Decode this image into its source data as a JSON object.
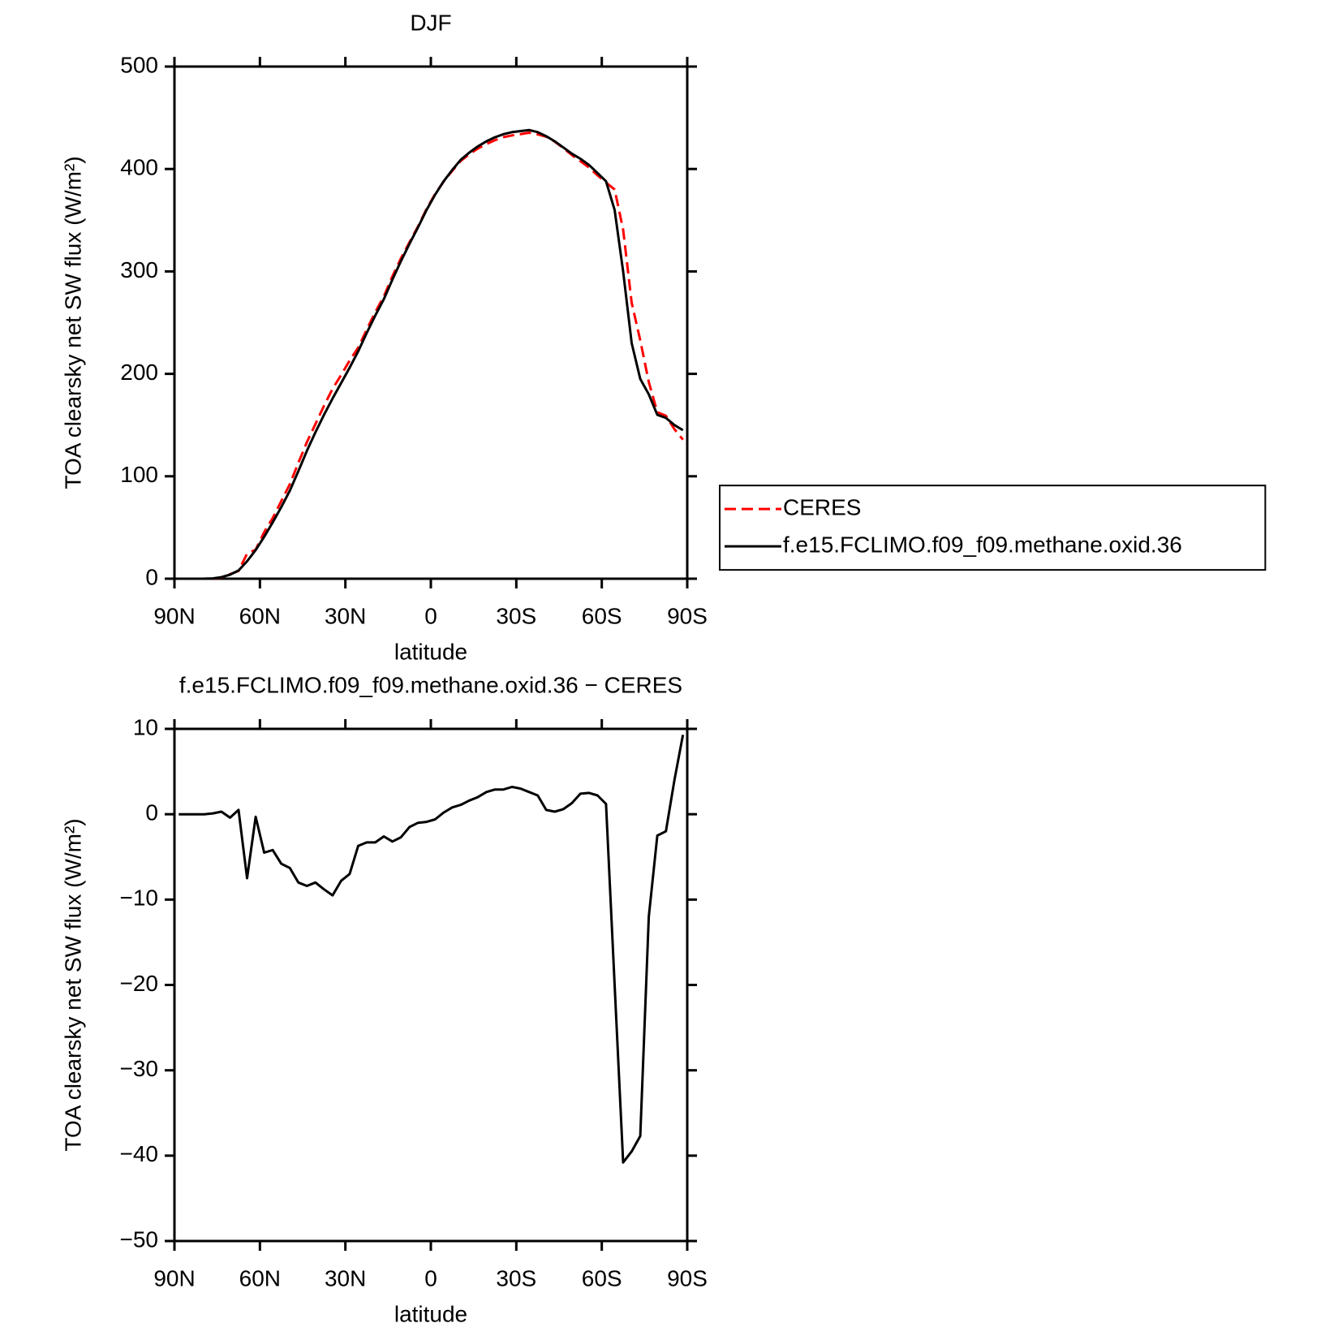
{
  "chart_data": [
    {
      "type": "line",
      "title": "DJF",
      "xlabel": "latitude",
      "ylabel": "TOA clearsky net SW flux (W/m²)",
      "x": [
        88.5,
        85.5,
        82.5,
        79.5,
        76.5,
        73.5,
        70.5,
        67.5,
        64.5,
        61.5,
        58.5,
        55.5,
        52.5,
        49.5,
        46.5,
        43.5,
        40.5,
        37.5,
        34.5,
        31.5,
        28.5,
        25.5,
        22.5,
        19.5,
        16.5,
        13.5,
        10.5,
        7.5,
        4.5,
        1.5,
        -1.5,
        -4.5,
        -7.5,
        -10.5,
        -13.5,
        -16.5,
        -19.5,
        -22.5,
        -25.5,
        -28.5,
        -31.5,
        -34.5,
        -37.5,
        -40.5,
        -43.5,
        -46.5,
        -49.5,
        -52.5,
        -55.5,
        -58.5,
        -61.5,
        -64.5,
        -67.5,
        -70.5,
        -73.5,
        -76.5,
        -79.5,
        -82.5,
        -85.5,
        -88.5
      ],
      "series": [
        {
          "name": "CERES",
          "color": "#ff0000",
          "dashed": true,
          "values": [
            0,
            0,
            0,
            0,
            0.2,
            1.2,
            4.4,
            7.5,
            24.5,
            28.3,
            45.5,
            59.2,
            75.8,
            92.3,
            113,
            133.4,
            151,
            168.8,
            185.5,
            198.8,
            213,
            225.7,
            243.3,
            260.3,
            275.6,
            295.2,
            312.7,
            328.5,
            344,
            360.9,
            375.6,
            387.8,
            398.2,
            407.9,
            414.4,
            420,
            424.4,
            428.1,
            431.1,
            432.8,
            434,
            435.4,
            433.8,
            431.5,
            426.7,
            420.4,
            413.7,
            407.6,
            401.5,
            393.8,
            386.8,
            380,
            340.8,
            269.5,
            232.7,
            192,
            162.5,
            159,
            146,
            135.7
          ]
        },
        {
          "name": "f.e15.FCLIMO.f09_f09.methane.oxid.36",
          "color": "#000000",
          "dashed": false,
          "values": [
            0,
            0,
            0,
            0,
            0.3,
            1.5,
            4,
            8,
            17,
            28,
            41,
            55,
            70,
            86,
            105,
            125,
            143,
            160,
            176,
            191,
            206,
            222,
            240,
            257,
            273,
            292,
            310,
            327,
            343,
            360,
            375,
            388,
            399,
            409,
            416,
            422,
            427,
            431,
            434,
            436,
            437,
            438,
            436,
            432,
            427,
            421,
            415,
            410,
            404,
            396,
            388,
            360,
            300,
            230,
            195,
            180,
            160,
            157,
            150,
            145
          ]
        }
      ],
      "xlim": [
        90,
        -90
      ],
      "xticks": [
        {
          "value": 90,
          "label": "90N"
        },
        {
          "value": 60,
          "label": "60N"
        },
        {
          "value": 30,
          "label": "30N"
        },
        0,
        {
          "value": -30,
          "label": "30S"
        },
        {
          "value": -60,
          "label": "60S"
        },
        {
          "value": -90,
          "label": "90S"
        }
      ],
      "ylim": [
        0,
        500
      ],
      "yticks": [
        0,
        100,
        200,
        300,
        400,
        500
      ],
      "legend": "right"
    },
    {
      "type": "line",
      "title": "f.e15.FCLIMO.f09_f09.methane.oxid.36 − CERES",
      "xlabel": "latitude",
      "ylabel": "TOA clearsky net SW flux (W/m²)",
      "x": [
        88.5,
        85.5,
        82.5,
        79.5,
        76.5,
        73.5,
        70.5,
        67.5,
        64.5,
        61.5,
        58.5,
        55.5,
        52.5,
        49.5,
        46.5,
        43.5,
        40.5,
        37.5,
        34.5,
        31.5,
        28.5,
        25.5,
        22.5,
        19.5,
        16.5,
        13.5,
        10.5,
        7.5,
        4.5,
        1.5,
        -1.5,
        -4.5,
        -7.5,
        -10.5,
        -13.5,
        -16.5,
        -19.5,
        -22.5,
        -25.5,
        -28.5,
        -31.5,
        -34.5,
        -37.5,
        -40.5,
        -43.5,
        -46.5,
        -49.5,
        -52.5,
        -55.5,
        -58.5,
        -61.5,
        -64.5,
        -67.5,
        -70.5,
        -73.5,
        -76.5,
        -79.5,
        -82.5,
        -85.5,
        -88.5
      ],
      "values": [
        0,
        0,
        0,
        0,
        0.1,
        0.3,
        -0.4,
        0.5,
        -7.5,
        -0.3,
        -4.5,
        -4.2,
        -5.8,
        -6.3,
        -8,
        -8.4,
        -8,
        -8.8,
        -9.5,
        -7.8,
        -7,
        -3.7,
        -3.3,
        -3.3,
        -2.6,
        -3.2,
        -2.7,
        -1.5,
        -1,
        -0.9,
        -0.6,
        0.2,
        0.8,
        1.1,
        1.6,
        2,
        2.6,
        2.9,
        2.9,
        3.2,
        3,
        2.6,
        2.2,
        0.5,
        0.3,
        0.6,
        1.3,
        2.4,
        2.5,
        2.2,
        1.2,
        -20,
        -40.8,
        -39.5,
        -37.7,
        -12,
        -2.5,
        -2,
        4,
        9.3
      ],
      "color": "#000000",
      "xlim": [
        90,
        -90
      ],
      "xticks": [
        {
          "value": 90,
          "label": "90N"
        },
        {
          "value": 60,
          "label": "60N"
        },
        {
          "value": 30,
          "label": "30N"
        },
        0,
        {
          "value": -30,
          "label": "30S"
        },
        {
          "value": -60,
          "label": "60S"
        },
        {
          "value": -90,
          "label": "90S"
        }
      ],
      "ylim": [
        -50,
        10
      ],
      "yticks": [
        {
          "value": -50,
          "label": "−50"
        },
        {
          "value": -40,
          "label": "−40"
        },
        {
          "value": -30,
          "label": "−30"
        },
        {
          "value": -20,
          "label": "−20"
        },
        {
          "value": -10,
          "label": "−10"
        },
        0,
        10
      ]
    }
  ]
}
